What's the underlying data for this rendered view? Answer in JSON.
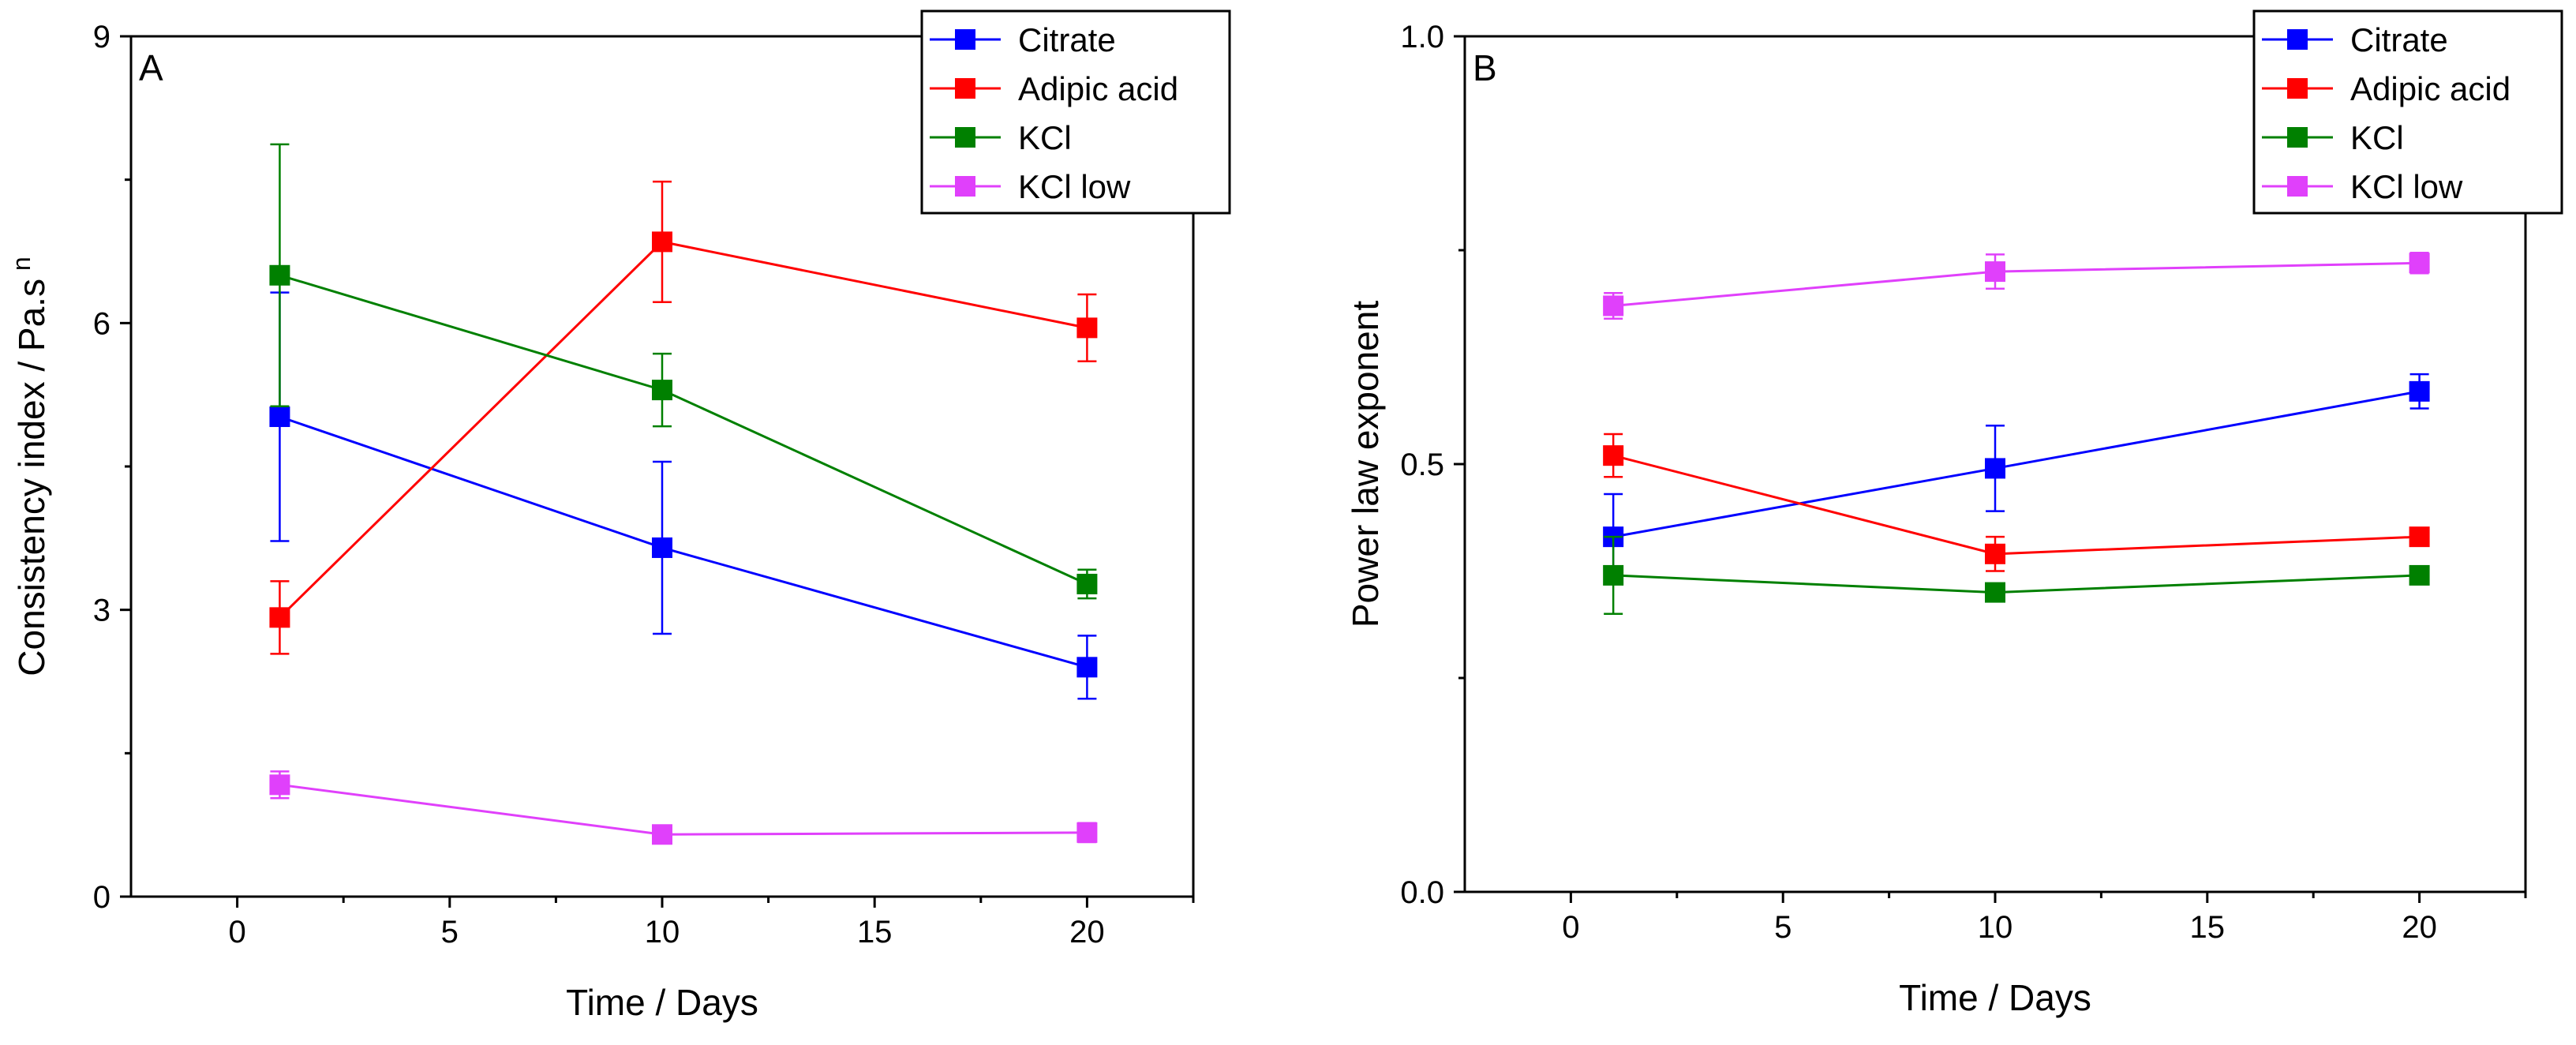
{
  "chart_data": [
    {
      "type": "line",
      "panel_label": "A",
      "xlabel": "Time / Days",
      "ylabel": "Consistency index / Pa.s",
      "ylabel_superscript": "n",
      "xlim": [
        -2.5,
        22.5
      ],
      "ylim": [
        0,
        9
      ],
      "xticks": [
        0,
        5,
        10,
        15,
        20
      ],
      "yticks": [
        0,
        3,
        6,
        9
      ],
      "x": [
        1,
        10,
        20
      ],
      "grid": false,
      "legend_position": "top-right",
      "series": [
        {
          "name": "Citrate",
          "color": "#0000ff",
          "values": [
            5.02,
            3.65,
            2.4
          ],
          "errors": [
            1.3,
            0.9,
            0.33
          ]
        },
        {
          "name": "Adipic acid",
          "color": "#ff0000",
          "values": [
            2.92,
            6.85,
            5.95
          ],
          "errors": [
            0.38,
            0.63,
            0.35
          ]
        },
        {
          "name": "KCl",
          "color": "#008000",
          "values": [
            6.5,
            5.3,
            3.27
          ],
          "errors": [
            1.37,
            0.38,
            0.15
          ]
        },
        {
          "name": "KCl low",
          "color": "#e040fb",
          "values": [
            1.17,
            0.65,
            0.67
          ],
          "errors": [
            0.14,
            0.05,
            0.1
          ]
        }
      ]
    },
    {
      "type": "line",
      "panel_label": "B",
      "xlabel": "Time / Days",
      "ylabel": "Power law exponent",
      "xlim": [
        -2.5,
        22.5
      ],
      "ylim": [
        0,
        1
      ],
      "xticks": [
        0,
        5,
        10,
        15,
        20
      ],
      "yticks": [
        0.0,
        0.5,
        1.0
      ],
      "ytick_labels": [
        "0.0",
        "0.5",
        "1.0"
      ],
      "x": [
        1,
        10,
        20
      ],
      "grid": false,
      "legend_position": "top-right",
      "series": [
        {
          "name": "Citrate",
          "color": "#0000ff",
          "values": [
            0.415,
            0.495,
            0.585
          ],
          "errors": [
            0.05,
            0.05,
            0.02
          ]
        },
        {
          "name": "Adipic acid",
          "color": "#ff0000",
          "values": [
            0.51,
            0.395,
            0.415
          ],
          "errors": [
            0.025,
            0.02,
            0.01
          ]
        },
        {
          "name": "KCl",
          "color": "#008000",
          "values": [
            0.37,
            0.35,
            0.37
          ],
          "errors": [
            0.045,
            0.008,
            0.008
          ]
        },
        {
          "name": "KCl low",
          "color": "#e040fb",
          "values": [
            0.685,
            0.725,
            0.735
          ],
          "errors": [
            0.015,
            0.02,
            0.012
          ]
        }
      ]
    }
  ]
}
